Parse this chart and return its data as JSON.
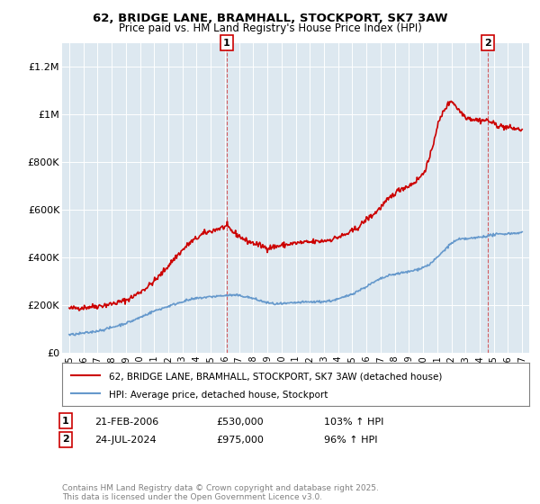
{
  "title_line1": "62, BRIDGE LANE, BRAMHALL, STOCKPORT, SK7 3AW",
  "title_line2": "Price paid vs. HM Land Registry's House Price Index (HPI)",
  "red_label": "62, BRIDGE LANE, BRAMHALL, STOCKPORT, SK7 3AW (detached house)",
  "blue_label": "HPI: Average price, detached house, Stockport",
  "annotation1_num": "1",
  "annotation1_date": "21-FEB-2006",
  "annotation1_price": "£530,000",
  "annotation1_hpi": "103% ↑ HPI",
  "annotation2_num": "2",
  "annotation2_date": "24-JUL-2024",
  "annotation2_price": "£975,000",
  "annotation2_hpi": "96% ↑ HPI",
  "footer": "Contains HM Land Registry data © Crown copyright and database right 2025.\nThis data is licensed under the Open Government Licence v3.0.",
  "red_color": "#cc0000",
  "blue_color": "#6699cc",
  "plot_bg": "#dde8f0",
  "marker1_x": 2006.13,
  "marker2_x": 2024.56,
  "ylim": [
    0,
    1300000
  ],
  "xlim_start": 1994.5,
  "xlim_end": 2027.5,
  "yticks": [
    0,
    200000,
    400000,
    600000,
    800000,
    1000000,
    1200000
  ],
  "ytick_labels": [
    "£0",
    "£200K",
    "£400K",
    "£600K",
    "£800K",
    "£1M",
    "£1.2M"
  ],
  "xticks": [
    1995,
    1996,
    1997,
    1998,
    1999,
    2000,
    2001,
    2002,
    2003,
    2004,
    2005,
    2006,
    2007,
    2008,
    2009,
    2010,
    2011,
    2012,
    2013,
    2014,
    2015,
    2016,
    2017,
    2018,
    2019,
    2020,
    2021,
    2022,
    2023,
    2024,
    2025,
    2026,
    2027
  ],
  "red_years": [
    1995.0,
    1995.5,
    1996.0,
    1996.5,
    1997.0,
    1997.5,
    1998.0,
    1998.5,
    1999.0,
    1999.5,
    2000.0,
    2000.5,
    2001.0,
    2001.5,
    2002.0,
    2002.5,
    2003.0,
    2003.5,
    2004.0,
    2004.5,
    2005.0,
    2005.5,
    2006.0,
    2006.13,
    2006.5,
    2007.0,
    2007.5,
    2008.0,
    2008.5,
    2009.0,
    2009.5,
    2010.0,
    2010.5,
    2011.0,
    2011.5,
    2012.0,
    2012.5,
    2013.0,
    2013.5,
    2014.0,
    2014.5,
    2015.0,
    2015.5,
    2016.0,
    2016.5,
    2017.0,
    2017.5,
    2018.0,
    2018.5,
    2019.0,
    2019.5,
    2020.0,
    2020.5,
    2021.0,
    2021.5,
    2022.0,
    2022.5,
    2023.0,
    2023.5,
    2024.0,
    2024.56,
    2025.0,
    2025.5,
    2026.0,
    2026.5,
    2027.0
  ],
  "red_prices": [
    185000,
    188000,
    190000,
    193000,
    196000,
    200000,
    205000,
    212000,
    220000,
    235000,
    255000,
    275000,
    300000,
    330000,
    365000,
    400000,
    430000,
    460000,
    480000,
    500000,
    510000,
    520000,
    528000,
    530000,
    510000,
    490000,
    470000,
    460000,
    450000,
    440000,
    445000,
    450000,
    455000,
    460000,
    462000,
    464000,
    466000,
    470000,
    475000,
    485000,
    495000,
    510000,
    530000,
    560000,
    580000,
    610000,
    640000,
    670000,
    690000,
    700000,
    720000,
    750000,
    820000,
    950000,
    1020000,
    1060000,
    1020000,
    990000,
    980000,
    975000,
    975000,
    960000,
    950000,
    945000,
    940000,
    935000
  ],
  "blue_years": [
    1995.0,
    1995.5,
    1996.0,
    1996.5,
    1997.0,
    1997.5,
    1998.0,
    1998.5,
    1999.0,
    1999.5,
    2000.0,
    2000.5,
    2001.0,
    2001.5,
    2002.0,
    2002.5,
    2003.0,
    2003.5,
    2004.0,
    2004.5,
    2005.0,
    2005.5,
    2006.0,
    2006.5,
    2007.0,
    2007.5,
    2008.0,
    2008.5,
    2009.0,
    2009.5,
    2010.0,
    2010.5,
    2011.0,
    2011.5,
    2012.0,
    2012.5,
    2013.0,
    2013.5,
    2014.0,
    2014.5,
    2015.0,
    2015.5,
    2016.0,
    2016.5,
    2017.0,
    2017.5,
    2018.0,
    2018.5,
    2019.0,
    2019.5,
    2020.0,
    2020.5,
    2021.0,
    2021.5,
    2022.0,
    2022.5,
    2023.0,
    2023.5,
    2024.0,
    2024.5,
    2025.0,
    2025.5,
    2026.0,
    2026.5,
    2027.0
  ],
  "blue_prices": [
    75000,
    78000,
    82000,
    86000,
    92000,
    98000,
    106000,
    115000,
    124000,
    135000,
    148000,
    162000,
    175000,
    185000,
    195000,
    205000,
    215000,
    222000,
    228000,
    232000,
    235000,
    238000,
    240000,
    242000,
    240000,
    235000,
    228000,
    218000,
    210000,
    205000,
    205000,
    207000,
    210000,
    212000,
    213000,
    214000,
    215000,
    218000,
    225000,
    235000,
    248000,
    262000,
    278000,
    295000,
    310000,
    322000,
    330000,
    335000,
    340000,
    348000,
    358000,
    372000,
    400000,
    430000,
    460000,
    475000,
    478000,
    480000,
    485000,
    490000,
    495000,
    498000,
    500000,
    502000,
    504000
  ]
}
